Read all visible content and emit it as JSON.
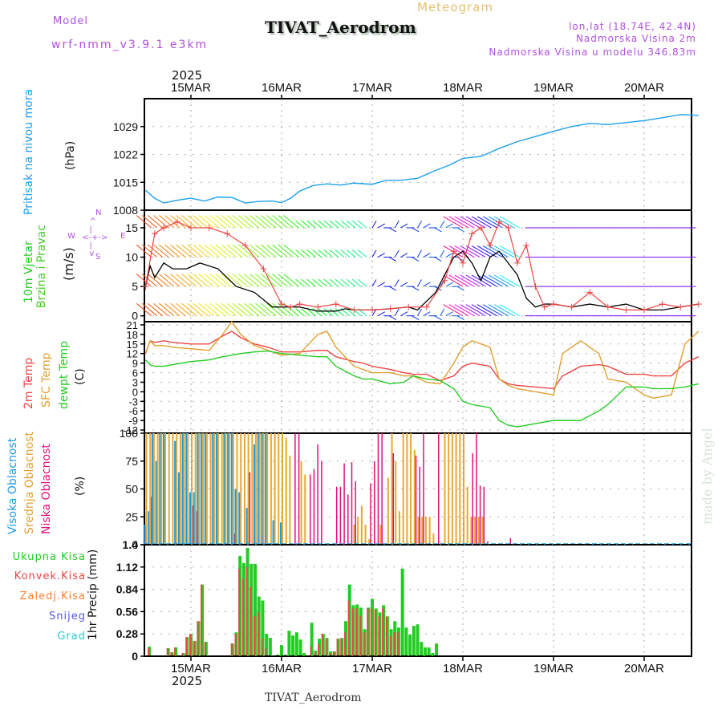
{
  "header": {
    "model_label": "Model",
    "model_name": "wrf-nmm_v3.9.1 e3km",
    "product": "Meteogram",
    "station": "TIVAT_Aerodrom",
    "coords": "lon,lat (18.74E, 42.4N)",
    "elevation": "Nadmorska Visina 2m",
    "model_elevation": "Nadmorska Visina u modelu 346.83m",
    "year": "2025",
    "footer_station": "TIVAT_Aerodrom",
    "watermark": "made by Angel"
  },
  "colors": {
    "pressure": "#1ea0ee",
    "temp2m": "#ee4444",
    "sfc": "#e0a030",
    "dewpt": "#22cc22",
    "high_cloud": "#1e9be0",
    "mid_cloud": "#e8a830",
    "low_cloud": "#e0107a",
    "total_precip": "#22cc22",
    "conv_precip": "#ee4444",
    "frz": "#ff8030",
    "snow": "#5555ee",
    "hail": "#30c8d0",
    "purple": "#b050e0"
  },
  "chart_data": [
    {
      "type": "line",
      "panel": "pressure",
      "ylabel": "Pritisak na nivou mora",
      "units": "(hPa)",
      "ylim": [
        1008,
        1036
      ],
      "yticks": [
        1008,
        1015,
        1022,
        1029
      ],
      "x_days": [
        -0.5,
        -0.4,
        -0.3,
        -0.15,
        0,
        0.15,
        0.3,
        0.45,
        0.6,
        0.75,
        0.9,
        1.0,
        1.1,
        1.2,
        1.35,
        1.5,
        1.65,
        1.8,
        2.0,
        2.15,
        2.3,
        2.5,
        2.7,
        2.85,
        3.0,
        3.2,
        3.4,
        3.6,
        3.8,
        4.0,
        4.2,
        4.4,
        4.6,
        4.8,
        5.0,
        5.2,
        5.4,
        5.6
      ],
      "values": [
        1013,
        1011,
        1009.8,
        1010.5,
        1011,
        1010.3,
        1011.3,
        1011.2,
        1009.8,
        1010.2,
        1010.3,
        1009.9,
        1011,
        1012.8,
        1014.2,
        1014.6,
        1014.3,
        1014.8,
        1014.5,
        1015.5,
        1015.5,
        1016,
        1018,
        1019.3,
        1021,
        1021.5,
        1023.5,
        1025.2,
        1026.5,
        1027.8,
        1029,
        1029.8,
        1029.5,
        1030,
        1030.5,
        1031.2,
        1032,
        1031.8
      ]
    },
    {
      "type": "line",
      "panel": "wind",
      "ylabel": "10m Vjetar Brzina i Pravac",
      "units": "(m/s)",
      "ylim": [
        -1,
        18
      ],
      "yticks": [
        0,
        5,
        10,
        15
      ],
      "compass": {
        "n": "N",
        "s": "S",
        "e": "E",
        "w": "W"
      },
      "series": [
        {
          "name": "speed",
          "x_days": [
            -0.5,
            -0.45,
            -0.4,
            -0.3,
            -0.2,
            -0.05,
            0.1,
            0.3,
            0.5,
            0.7,
            0.9,
            1.0,
            1.2,
            1.4,
            1.6,
            1.7,
            1.8,
            2.0,
            2.2,
            2.4,
            2.5,
            2.7,
            2.8,
            2.9,
            3.0,
            3.1,
            3.2,
            3.3,
            3.4,
            3.5,
            3.6,
            3.7,
            3.8,
            3.9,
            4.0,
            4.2,
            4.4,
            4.6,
            4.8,
            5.0,
            5.2,
            5.4,
            5.6
          ],
          "values": [
            5,
            8.5,
            6.5,
            9,
            8,
            8,
            9,
            8,
            5,
            4,
            1.5,
            1.5,
            1.5,
            0.8,
            0.8,
            1.2,
            1,
            1,
            1.2,
            1.5,
            1,
            4,
            7,
            10,
            11,
            9,
            6,
            10,
            11,
            9,
            7,
            3,
            1.5,
            2,
            2,
            1.5,
            2,
            1.5,
            2,
            1,
            1,
            1.5,
            2
          ]
        },
        {
          "name": "gust",
          "x_days": [
            -0.5,
            -0.4,
            -0.3,
            -0.15,
            0,
            0.2,
            0.4,
            0.6,
            0.8,
            1.0,
            1.1,
            1.2,
            1.4,
            1.6,
            1.8,
            2.0,
            2.2,
            2.4,
            2.6,
            2.8,
            2.9,
            3.0,
            3.1,
            3.2,
            3.3,
            3.4,
            3.5,
            3.6,
            3.7,
            3.8,
            3.9,
            4.0,
            4.2,
            4.4,
            4.6,
            4.8,
            5.0,
            5.2,
            5.4,
            5.6
          ],
          "values": [
            5,
            14,
            15,
            16,
            15,
            15,
            14,
            12,
            8,
            2,
            1.5,
            2,
            1.5,
            2,
            1,
            1,
            1.2,
            1.5,
            1.5,
            6,
            11,
            9,
            14,
            15,
            12,
            16,
            15,
            9,
            12,
            5,
            1.5,
            2,
            1.5,
            4,
            1.5,
            1,
            1,
            2,
            1.5,
            2
          ]
        }
      ],
      "barb_rows_ms": [
        15,
        10,
        5,
        0
      ]
    },
    {
      "type": "line",
      "panel": "temperature",
      "ylabel": [
        "2m Temp",
        "SFC Temp",
        "dewpt Temp"
      ],
      "units": "(C)",
      "ylim": [
        -13,
        22
      ],
      "yticks": [
        21,
        18,
        15,
        12,
        9,
        6,
        3,
        0,
        -3,
        -6,
        -9,
        -12
      ],
      "x_days": [
        -0.5,
        -0.45,
        -0.4,
        -0.3,
        -0.2,
        0,
        0.2,
        0.35,
        0.45,
        0.55,
        0.7,
        0.85,
        1.0,
        1.2,
        1.4,
        1.5,
        1.6,
        1.8,
        1.9,
        2.0,
        2.2,
        2.35,
        2.45,
        2.6,
        2.75,
        2.9,
        3.0,
        3.1,
        3.3,
        3.4,
        3.5,
        3.6,
        3.8,
        4.0,
        4.1,
        4.3,
        4.5,
        4.6,
        4.8,
        5.0,
        5.1,
        5.3,
        5.45,
        5.6
      ],
      "series": [
        {
          "name": "2m Temp",
          "values": [
            12,
            16,
            15.5,
            16,
            15.5,
            15,
            15,
            17.5,
            19,
            17,
            15,
            14,
            12.5,
            12.5,
            13,
            13,
            11,
            9.5,
            9,
            8,
            7,
            6,
            5.5,
            5.5,
            3.5,
            5,
            8,
            9,
            8,
            4,
            2.5,
            2,
            1.5,
            1,
            5,
            8,
            8.5,
            8,
            5.5,
            5.5,
            5,
            5,
            9,
            11
          ]
        },
        {
          "name": "SFC Temp",
          "values": [
            12,
            16,
            14.5,
            14.5,
            14,
            13.5,
            13,
            18,
            22,
            18,
            14.5,
            13,
            11.5,
            12,
            18,
            19,
            14,
            8,
            7,
            6,
            6,
            5,
            5,
            3,
            2.5,
            9,
            14,
            16,
            14,
            4,
            2,
            1,
            0,
            -1,
            12,
            16,
            12,
            4,
            3,
            -1,
            -2,
            -1,
            15,
            19
          ]
        },
        {
          "name": "dewpt Temp",
          "values": [
            10,
            8.5,
            8,
            8,
            8.5,
            9.5,
            10,
            11,
            11.5,
            12,
            12.5,
            12.8,
            12,
            11.5,
            11,
            11,
            8,
            5,
            4,
            4,
            2.5,
            3,
            5,
            4,
            3.5,
            1,
            -3,
            -4,
            -5,
            -9,
            -10.5,
            -11,
            -10,
            -9,
            -9,
            -9,
            -6,
            -4,
            1.5,
            1.5,
            1,
            1,
            1.5,
            2.5
          ]
        }
      ]
    },
    {
      "type": "bar",
      "panel": "cloud",
      "ylabel": [
        "Visoka Oblacnost",
        "Srednja Oblacnost",
        "Niska Oblacnost"
      ],
      "units": "(%)",
      "ylim": [
        0,
        100
      ],
      "yticks": [
        0,
        25,
        50,
        75,
        100
      ],
      "x_hours": [
        -12,
        -11,
        -10,
        -9,
        -8,
        -7,
        -6,
        -5,
        -4,
        -3,
        -2,
        -1,
        0,
        1,
        2,
        3,
        4,
        5,
        6,
        7,
        8,
        9,
        10,
        11,
        12,
        13,
        14,
        15,
        16,
        17,
        18,
        19,
        20,
        21,
        22,
        23,
        24,
        25,
        26,
        27,
        28,
        29,
        30,
        31,
        32,
        33,
        34,
        35,
        36,
        37,
        38,
        39,
        40,
        41,
        42,
        43,
        44,
        45,
        46,
        47,
        48,
        49,
        50,
        51,
        52,
        53,
        54,
        55,
        56,
        57,
        58,
        59,
        60,
        61,
        62,
        63,
        64,
        65,
        66,
        67,
        68,
        69,
        70,
        71,
        72,
        73,
        74,
        75,
        76,
        77,
        78,
        79,
        80,
        81,
        82,
        83,
        84,
        85,
        86,
        87
      ],
      "series": [
        {
          "name": "Visoka",
          "values": [
            18,
            30,
            100,
            75,
            100,
            100,
            0,
            0,
            93,
            65,
            100,
            100,
            47,
            47,
            100,
            100,
            100,
            0,
            100,
            100,
            0,
            100,
            100,
            100,
            50,
            47,
            0,
            33,
            0,
            90,
            100,
            100,
            100,
            0,
            22,
            0,
            20,
            0,
            0,
            0,
            0,
            0,
            0,
            0,
            0,
            0,
            0,
            0,
            0,
            0,
            0,
            0,
            0,
            0,
            0,
            0,
            0,
            0,
            0,
            0,
            0,
            0,
            0,
            0,
            0,
            0,
            0,
            0,
            0,
            0,
            0,
            0,
            0,
            0,
            0,
            0,
            0,
            0,
            0,
            0,
            0,
            0,
            0,
            0,
            0,
            0,
            0,
            0,
            0,
            0,
            0,
            0,
            0,
            0,
            0,
            0,
            0,
            0,
            0,
            0
          ]
        },
        {
          "name": "Srednja",
          "values": [
            100,
            100,
            100,
            100,
            100,
            100,
            100,
            100,
            100,
            100,
            100,
            100,
            100,
            100,
            100,
            100,
            100,
            100,
            100,
            100,
            100,
            100,
            100,
            100,
            100,
            100,
            100,
            100,
            100,
            100,
            100,
            100,
            100,
            100,
            100,
            100,
            100,
            96,
            80,
            0,
            0,
            75,
            63,
            0,
            0,
            0,
            0,
            0,
            0,
            0,
            0,
            0,
            0,
            0,
            0,
            18,
            25,
            35,
            18,
            5,
            0,
            0,
            18,
            0,
            60,
            100,
            75,
            30,
            100,
            100,
            100,
            85,
            25,
            25,
            25,
            25,
            10,
            0,
            2,
            100,
            100,
            100,
            100,
            100,
            100,
            52,
            25,
            25,
            25,
            25,
            0,
            0,
            0,
            0,
            0,
            0,
            0,
            0,
            0,
            0
          ]
        },
        {
          "name": "Niska",
          "values": [
            0,
            43,
            0,
            0,
            0,
            0,
            0,
            0,
            0,
            0,
            0,
            0,
            35,
            30,
            0,
            0,
            0,
            0,
            0,
            0,
            0,
            0,
            0,
            10,
            0,
            0,
            0,
            65,
            0,
            0,
            0,
            0,
            0,
            0,
            0,
            0,
            0,
            0,
            0,
            100,
            100,
            0,
            0,
            63,
            68,
            90,
            75,
            0,
            0,
            0,
            52,
            52,
            73,
            45,
            74,
            57,
            0,
            0,
            0,
            55,
            75,
            100,
            100,
            0,
            0,
            82,
            0,
            0,
            0,
            0,
            0,
            80,
            70,
            100,
            0,
            0,
            0,
            100,
            0,
            0,
            0,
            0,
            0,
            0,
            0,
            0,
            82,
            100,
            53,
            52,
            3,
            0,
            0,
            0,
            0,
            0,
            6,
            0,
            0,
            0
          ]
        }
      ]
    },
    {
      "type": "bar",
      "panel": "precipitation",
      "ylabel": "1hr Precip (mm)",
      "legend": [
        "Ukupna Kisa",
        "Konvek.Kisa",
        "Zaledj.Kisa",
        "Snijeg",
        "Grad"
      ],
      "ylim": [
        0,
        1.4
      ],
      "yticks": [
        0,
        0.28,
        0.56,
        0.84,
        1.12,
        1.4
      ],
      "x_hours": [
        -11,
        -6,
        -5,
        -4,
        -2,
        -1,
        0,
        1,
        2,
        3,
        4,
        5,
        11,
        12,
        13,
        14,
        15,
        16,
        17,
        18,
        19,
        20,
        21,
        22,
        23,
        24,
        25,
        26,
        27,
        28,
        29,
        30,
        31,
        32,
        33,
        34,
        35,
        36,
        37,
        38,
        39,
        40,
        41,
        42,
        43,
        44,
        45,
        46,
        47,
        48,
        49,
        50,
        51,
        52,
        53,
        54,
        55,
        56,
        57,
        58,
        59,
        60,
        61,
        62,
        63,
        64,
        65
      ],
      "series": [
        {
          "name": "Ukupna Kisa",
          "values": [
            0.12,
            0.1,
            0.05,
            0.11,
            0.04,
            0.24,
            0.28,
            0.19,
            0.44,
            0.9,
            0.18,
            0.01,
            0.16,
            0.3,
            1.26,
            1.17,
            1.36,
            1.16,
            1.16,
            0.75,
            0.7,
            0.28,
            0.23,
            0.01,
            0.02,
            0.14,
            0.02,
            0.32,
            0.26,
            0.3,
            0.21,
            0.04,
            0.01,
            0.42,
            0.07,
            0.22,
            0.28,
            0.23,
            0.06,
            0.06,
            0.22,
            0.23,
            0.44,
            0.9,
            0.64,
            0.65,
            0.61,
            0.34,
            0.61,
            0.72,
            0.6,
            0.55,
            0.64,
            0.5,
            0.34,
            0.44,
            0.36,
            1.1,
            0.36,
            0.27,
            0.38,
            0.4,
            0.18,
            0.11,
            0.11,
            0.04,
            0.16
          ]
        },
        {
          "name": "Konvek.Kisa",
          "values": [
            0.1,
            0.1,
            0.05,
            0.11,
            0.04,
            0.24,
            0.28,
            0.19,
            0.44,
            0.9,
            0.18,
            0.01,
            0.16,
            0.28,
            1.1,
            0.97,
            1.12,
            0.87,
            0.5,
            0.55,
            0.22,
            0.1,
            0,
            0,
            0,
            0,
            0,
            0,
            0,
            0,
            0,
            0,
            0,
            0.13,
            0.05,
            0.15,
            0.28,
            0.22,
            0.04,
            0.06,
            0.22,
            0.22,
            0.3,
            0.7,
            0.6,
            0.6,
            0.51,
            0.3,
            0.6,
            0.6,
            0.58,
            0.5,
            0.6,
            0.5,
            0.25,
            0.3,
            0.3,
            0.01,
            0,
            0,
            0,
            0,
            0,
            0,
            0,
            0,
            0
          ]
        }
      ]
    }
  ],
  "xaxis": {
    "ticks": [
      "15MAR",
      "16MAR",
      "17MAR",
      "18MAR",
      "19MAR",
      "20MAR"
    ],
    "year": "2025"
  }
}
